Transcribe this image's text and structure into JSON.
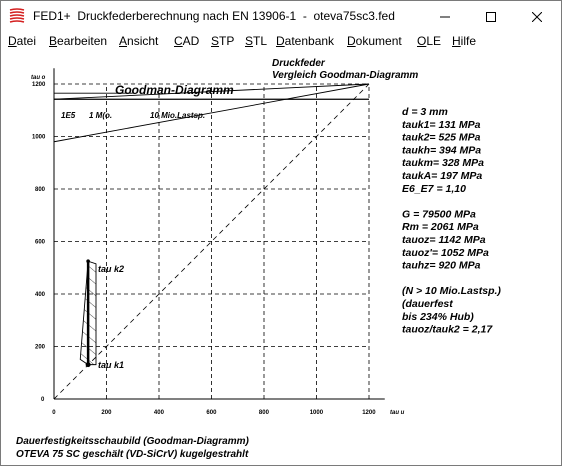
{
  "window": {
    "title": "FED1+  Druckfederberechnung nach EN 13906-1  -  oteva75sc3.fed"
  },
  "menu": [
    {
      "label": "Datei",
      "name": "menu-datei",
      "x": 7
    },
    {
      "label": "Bearbeiten",
      "name": "menu-bearbeiten",
      "x": 48
    },
    {
      "label": "Ansicht",
      "name": "menu-ansicht",
      "x": 118
    },
    {
      "label": "CAD",
      "name": "menu-cad",
      "x": 173
    },
    {
      "label": "STP",
      "name": "menu-stp",
      "x": 210
    },
    {
      "label": "STL",
      "name": "menu-stl",
      "x": 244
    },
    {
      "label": "Datenbank",
      "name": "menu-datenbank",
      "x": 275
    },
    {
      "label": "Dokument",
      "name": "menu-dokument",
      "x": 346
    },
    {
      "label": "OLE",
      "name": "menu-ole",
      "x": 416
    },
    {
      "label": "Hilfe",
      "name": "menu-hilfe",
      "x": 451
    }
  ],
  "header": {
    "line1": "Druckfeder",
    "line2": "Vergleich Goodman-Diagramm"
  },
  "chart_data": {
    "type": "line",
    "title": "Goodman-Diagramm",
    "xlabel": "tau u",
    "ylabel": "tau o",
    "xlim": [
      0,
      1300
    ],
    "ylim": [
      0,
      1300
    ],
    "xticks": [
      "0",
      "200",
      "400",
      "600",
      "800",
      "1000",
      "1200"
    ],
    "yticks": [
      "0",
      "200",
      "400",
      "600",
      "800",
      "1000",
      "1200"
    ],
    "grid": true,
    "series": [
      {
        "name": "1E5",
        "points": [
          [
            0,
            1142
          ],
          [
            1142,
            1142
          ]
        ]
      },
      {
        "name": "1 Mio.",
        "points": [
          [
            0,
            1142
          ],
          [
            1142,
            1142
          ]
        ]
      },
      {
        "name": "10 Mio.Lastsp.",
        "points": [
          [
            0,
            980
          ],
          [
            1200,
            1200
          ]
        ]
      }
    ],
    "annotations": [
      "1E5",
      "1 M(o.",
      "10 Mio.Lastsp."
    ],
    "marker_labels": {
      "upper": "tau k2",
      "lower": "tau k1"
    },
    "tau_k1": 131,
    "tau_k2": 525,
    "tauh": 394,
    "hatch_region": {
      "x_left": 100,
      "x_right": 160,
      "y_bottom": 131,
      "y_top": 525
    }
  },
  "params": [
    "d  = 3 mm",
    "tauk1=  131 MPa",
    "tauk2=  525 MPa",
    "taukh=  394 MPa",
    "taukm=  328 MPa",
    "taukA=  197 MPa",
    "E6_E7 = 1,10",
    "",
    "G =  79500 MPa",
    "Rm =  2061 MPa",
    "tauoz= 1142 MPa",
    "tauoz'= 1052 MPa",
    "tauhz=  920 MPa",
    "",
    "(N > 10 Mio.Lastsp.)",
    "(dauerfest",
    "bis 234% Hub)",
    "tauoz/tauk2 = 2,17"
  ],
  "footer": {
    "line1": "Dauerfestigkeitsschaubild (Goodman-Diagramm)",
    "line2": "OTEVA 75 SC geschält (VD-SiCrV) kugelgestrahlt"
  }
}
